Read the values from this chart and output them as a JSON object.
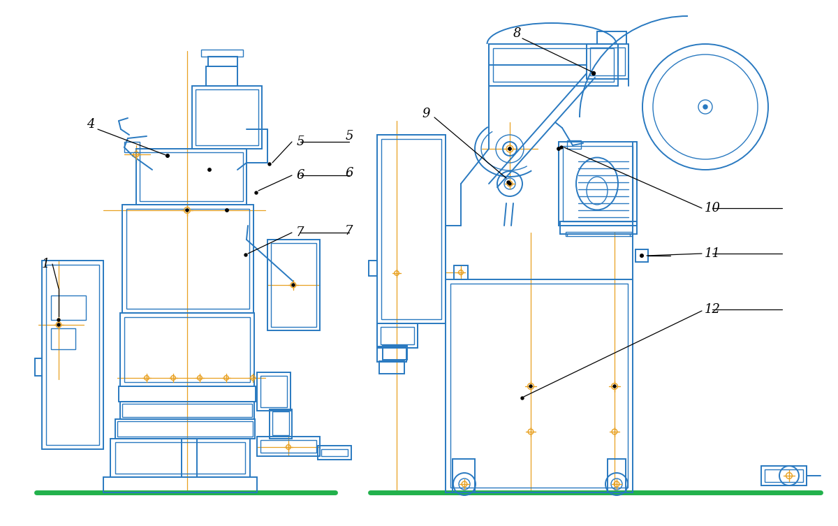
{
  "bg_color": "#ffffff",
  "blue": "#2979c0",
  "orange": "#e8a020",
  "green": "#22b14c",
  "black": "#000000",
  "figsize": [
    12.0,
    7.53
  ],
  "dpi": 100
}
